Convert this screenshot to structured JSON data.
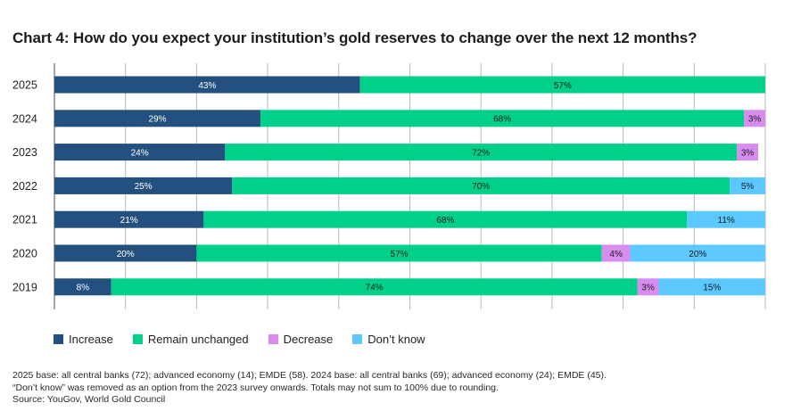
{
  "chart_data": {
    "type": "bar",
    "orientation": "horizontal",
    "stacked": true,
    "title": "Chart 4: How do you expect your institution’s gold reserves to change over the next 12 months?",
    "categories": [
      "2025",
      "2024",
      "2023",
      "2022",
      "2021",
      "2020",
      "2019"
    ],
    "series": [
      {
        "name": "Increase",
        "color": "#23507e",
        "label_color": "#ffffff",
        "values": [
          43,
          29,
          24,
          25,
          21,
          20,
          8
        ],
        "labels": [
          "43%",
          "29%",
          "24%",
          "25%",
          "21%",
          "20%",
          "8%"
        ]
      },
      {
        "name": "Remain unchanged",
        "color": "#00d08a",
        "label_color": "#1a1a1a",
        "values": [
          57,
          68,
          72,
          70,
          68,
          57,
          74
        ],
        "labels": [
          "57%",
          "68%",
          "72%",
          "70%",
          "68%",
          "57%",
          "74%"
        ]
      },
      {
        "name": "Decrease",
        "color": "#d88cf0",
        "label_color": "#1a1a1a",
        "values": [
          0,
          3,
          3,
          0,
          0,
          4,
          3
        ],
        "labels": [
          "",
          "3%",
          "3%",
          "",
          "",
          "4%",
          "3%"
        ]
      },
      {
        "name": "Don’t know",
        "color": "#5bc8ff",
        "label_color": "#1a1a1a",
        "values": [
          0,
          0,
          0,
          5,
          11,
          20,
          15
        ],
        "labels": [
          "",
          "",
          "",
          "5%",
          "11%",
          "20%",
          "15%"
        ]
      }
    ],
    "xlim": [
      0,
      100
    ],
    "gridlines": "vertical",
    "legend": "bottom-left"
  },
  "notes": {
    "line1": "2025 base: all central banks (72); advanced economy (14); EMDE (58). 2024 base: all central banks (69); advanced economy (24); EMDE (45).",
    "line2": "“Don’t know” was removed as an option from the 2023 survey onwards. Totals may not sum to 100% due to rounding.",
    "source": "Source: YouGov, World Gold Council"
  }
}
